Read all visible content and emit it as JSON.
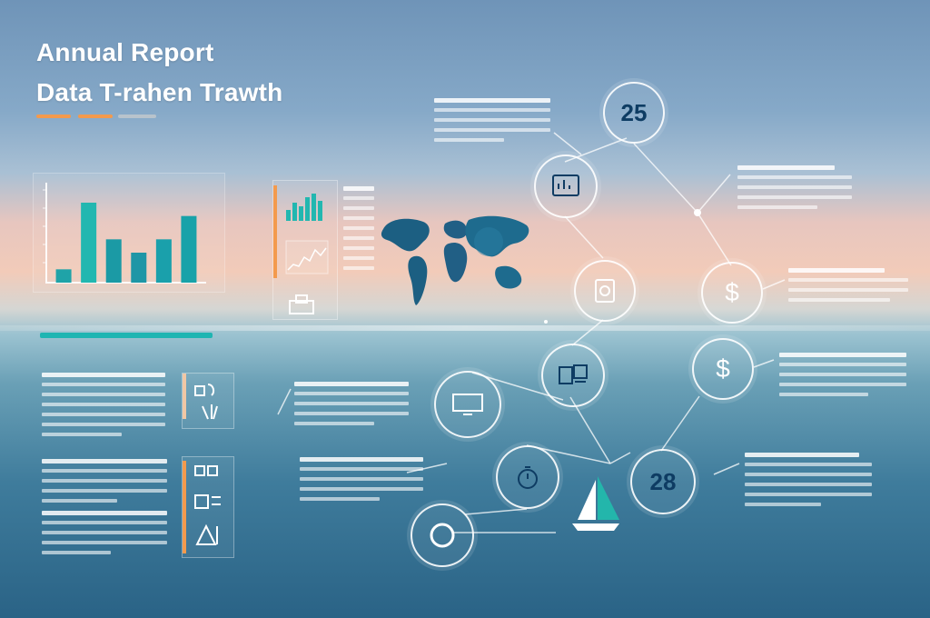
{
  "header": {
    "title_line1": "Annual Report",
    "title_line2": "Data T-rahen Trawth",
    "accent_colors": [
      "#f39a4d",
      "#f39a4d",
      "#b8c3cc"
    ]
  },
  "circles": [
    {
      "id": "c25",
      "kind": "number",
      "value": "25"
    },
    {
      "id": "c-tablet",
      "kind": "icon",
      "icon": "tablet-chart-icon"
    },
    {
      "id": "c-doc",
      "kind": "icon",
      "icon": "document-icon"
    },
    {
      "id": "c-dollar-1",
      "kind": "symbol",
      "value": "$"
    },
    {
      "id": "c-docs",
      "kind": "icon",
      "icon": "documents-icon"
    },
    {
      "id": "c-dollar-2",
      "kind": "symbol",
      "value": "$"
    },
    {
      "id": "c-monitor",
      "kind": "icon",
      "icon": "monitor-icon"
    },
    {
      "id": "c-clock",
      "kind": "icon",
      "icon": "stopwatch-icon"
    },
    {
      "id": "c28",
      "kind": "number",
      "value": "28"
    },
    {
      "id": "c-ring",
      "kind": "icon",
      "icon": "ring-icon"
    }
  ],
  "chart_data": {
    "type": "bar",
    "categories": [
      "",
      "",
      "",
      "",
      "",
      ""
    ],
    "values": [
      4,
      24,
      13,
      9,
      13,
      20
    ],
    "ylim": [
      0,
      30
    ],
    "colors": [
      "#1fa3a8",
      "#22b7b0",
      "#1b9aa5",
      "#1e96a6",
      "#1aa0ab",
      "#18a2a9"
    ],
    "title": "",
    "xlabel": "",
    "ylabel": ""
  },
  "colors": {
    "teal": "#1aa7ab",
    "orange": "#f39a4d",
    "navy": "#0e3c63",
    "white": "#ffffff"
  }
}
